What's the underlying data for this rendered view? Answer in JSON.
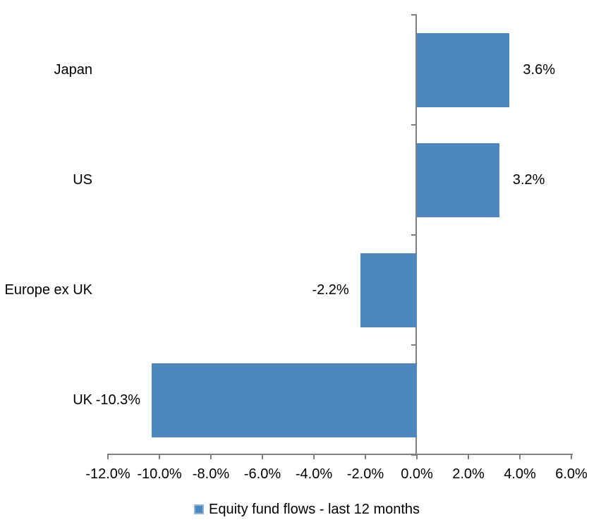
{
  "chart_data": {
    "type": "bar",
    "orientation": "horizontal",
    "title": "",
    "xlabel": "",
    "ylabel": "",
    "categories": [
      "Japan",
      "US",
      "Europe ex UK",
      "UK"
    ],
    "series": [
      {
        "name": "Equity fund flows - last 12 months",
        "values": [
          3.6,
          3.2,
          -2.2,
          -10.3
        ],
        "data_labels": [
          "3.6%",
          "3.2%",
          "-2.2%",
          "-10.3%"
        ]
      }
    ],
    "xlim": [
      -12,
      6
    ],
    "x_tick_step": 2,
    "x_tick_labels": [
      "-12.0%",
      "-10.0%",
      "-8.0%",
      "-6.0%",
      "-4.0%",
      "-2.0%",
      "0.0%",
      "2.0%",
      "4.0%",
      "6.0%"
    ],
    "grid": false,
    "legend_position": "bottom-center",
    "data_label_position": "outside-end"
  },
  "legend": {
    "marker": "blue-square",
    "label": "Equity fund flows - last 12 months"
  },
  "colors": {
    "bar": "#4E86BE",
    "legend_marker_border": "#8FB2DA",
    "axis": "#808080",
    "text": "#000000",
    "background": "#FFFFFF"
  }
}
